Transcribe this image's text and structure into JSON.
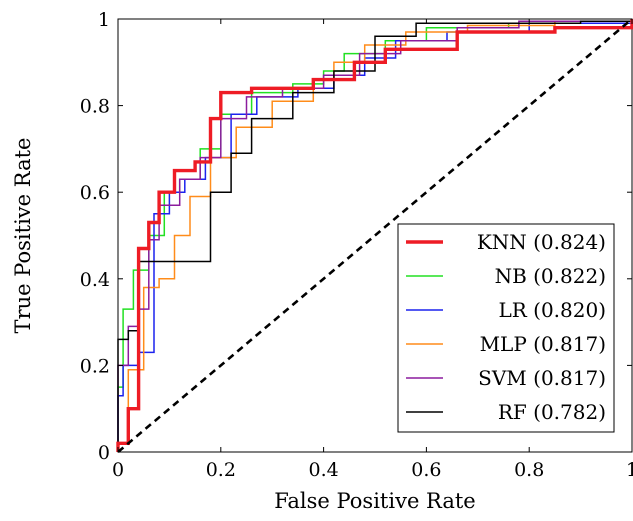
{
  "chart_data": {
    "type": "line",
    "title": "",
    "xlabel": "False Positive Rate",
    "ylabel": "True Positive Rate",
    "xlim": [
      0,
      1
    ],
    "ylim": [
      0,
      1
    ],
    "xticks": [
      0,
      0.2,
      0.4,
      0.6,
      0.8,
      1
    ],
    "yticks": [
      0,
      0.2,
      0.4,
      0.6,
      0.8,
      1
    ],
    "xtick_labels": [
      "0",
      "0.2",
      "0.4",
      "0.6",
      "0.8",
      "1"
    ],
    "ytick_labels": [
      "0",
      "0.2",
      "0.4",
      "0.6",
      "0.8",
      "1"
    ],
    "grid": false,
    "legend_position": "bottom-right",
    "reference_line": {
      "x": [
        0,
        1
      ],
      "y": [
        0,
        1
      ],
      "style": "dashed",
      "color": "#000000"
    },
    "series": [
      {
        "name": "KNN (0.824)",
        "color": "#ee1c25",
        "width": 3.4,
        "x": [
          0,
          0,
          0.02,
          0.02,
          0.04,
          0.04,
          0.06,
          0.06,
          0.08,
          0.08,
          0.11,
          0.11,
          0.15,
          0.15,
          0.18,
          0.18,
          0.2,
          0.2,
          0.26,
          0.26,
          0.38,
          0.38,
          0.46,
          0.46,
          0.52,
          0.52,
          0.66,
          0.66,
          0.85,
          0.85,
          1,
          1
        ],
        "y": [
          0,
          0.02,
          0.02,
          0.1,
          0.1,
          0.47,
          0.47,
          0.53,
          0.53,
          0.6,
          0.6,
          0.65,
          0.65,
          0.67,
          0.67,
          0.77,
          0.77,
          0.83,
          0.83,
          0.84,
          0.84,
          0.86,
          0.86,
          0.9,
          0.9,
          0.93,
          0.93,
          0.97,
          0.97,
          0.98,
          0.98,
          1
        ]
      },
      {
        "name": "NB (0.822)",
        "color": "#22e022",
        "width": 1.5,
        "x": [
          0,
          0,
          0.01,
          0.01,
          0.03,
          0.03,
          0.06,
          0.06,
          0.09,
          0.09,
          0.12,
          0.12,
          0.16,
          0.16,
          0.2,
          0.2,
          0.26,
          0.26,
          0.34,
          0.34,
          0.4,
          0.4,
          0.44,
          0.44,
          0.52,
          0.52,
          0.6,
          0.6,
          0.76,
          0.76,
          1,
          1
        ],
        "y": [
          0,
          0.15,
          0.15,
          0.33,
          0.33,
          0.42,
          0.42,
          0.5,
          0.5,
          0.6,
          0.6,
          0.63,
          0.63,
          0.7,
          0.7,
          0.78,
          0.78,
          0.83,
          0.83,
          0.85,
          0.85,
          0.88,
          0.88,
          0.92,
          0.92,
          0.95,
          0.95,
          0.98,
          0.98,
          0.99,
          0.99,
          1
        ]
      },
      {
        "name": "LR (0.820)",
        "color": "#1c22ee",
        "width": 1.5,
        "x": [
          0,
          0,
          0.01,
          0.01,
          0.04,
          0.04,
          0.07,
          0.07,
          0.1,
          0.1,
          0.13,
          0.13,
          0.17,
          0.17,
          0.22,
          0.22,
          0.27,
          0.27,
          0.35,
          0.35,
          0.42,
          0.42,
          0.48,
          0.48,
          0.54,
          0.54,
          0.64,
          0.64,
          0.8,
          0.8,
          1,
          1
        ],
        "y": [
          0,
          0.13,
          0.13,
          0.2,
          0.2,
          0.23,
          0.23,
          0.55,
          0.55,
          0.6,
          0.6,
          0.63,
          0.63,
          0.68,
          0.68,
          0.78,
          0.78,
          0.82,
          0.82,
          0.84,
          0.84,
          0.87,
          0.87,
          0.91,
          0.91,
          0.95,
          0.95,
          0.97,
          0.97,
          0.99,
          0.99,
          1
        ]
      },
      {
        "name": "MLP (0.817)",
        "color": "#ff8c1a",
        "width": 1.5,
        "x": [
          0,
          0,
          0.02,
          0.02,
          0.05,
          0.05,
          0.08,
          0.08,
          0.11,
          0.11,
          0.14,
          0.14,
          0.18,
          0.18,
          0.23,
          0.23,
          0.3,
          0.3,
          0.38,
          0.38,
          0.42,
          0.42,
          0.48,
          0.48,
          0.56,
          0.56,
          0.68,
          0.68,
          0.85,
          0.85,
          1,
          1
        ],
        "y": [
          0,
          0.02,
          0.02,
          0.19,
          0.19,
          0.38,
          0.38,
          0.4,
          0.4,
          0.5,
          0.5,
          0.59,
          0.59,
          0.68,
          0.68,
          0.75,
          0.75,
          0.81,
          0.81,
          0.86,
          0.86,
          0.9,
          0.9,
          0.94,
          0.94,
          0.97,
          0.97,
          0.985,
          0.985,
          0.995,
          0.995,
          1
        ]
      },
      {
        "name": "SVM (0.817)",
        "color": "#8b1c9e",
        "width": 1.5,
        "x": [
          0,
          0,
          0.02,
          0.02,
          0.04,
          0.04,
          0.06,
          0.06,
          0.08,
          0.08,
          0.12,
          0.12,
          0.16,
          0.16,
          0.2,
          0.2,
          0.25,
          0.25,
          0.32,
          0.32,
          0.4,
          0.4,
          0.47,
          0.47,
          0.55,
          0.55,
          0.66,
          0.66,
          0.78,
          0.78,
          1,
          1
        ],
        "y": [
          0,
          0.2,
          0.2,
          0.29,
          0.29,
          0.33,
          0.33,
          0.49,
          0.49,
          0.57,
          0.57,
          0.63,
          0.63,
          0.68,
          0.68,
          0.77,
          0.77,
          0.82,
          0.82,
          0.84,
          0.84,
          0.87,
          0.87,
          0.92,
          0.92,
          0.95,
          0.95,
          0.98,
          0.98,
          0.995,
          0.995,
          1
        ]
      },
      {
        "name": "RF (0.782)",
        "color": "#000000",
        "width": 1.5,
        "x": [
          0,
          0,
          0.02,
          0.02,
          0.04,
          0.04,
          0.18,
          0.18,
          0.22,
          0.22,
          0.26,
          0.26,
          0.34,
          0.34,
          0.42,
          0.42,
          0.5,
          0.5,
          0.58,
          0.58,
          0.9,
          0.9,
          1,
          1
        ],
        "y": [
          0,
          0.26,
          0.26,
          0.28,
          0.28,
          0.44,
          0.44,
          0.6,
          0.6,
          0.69,
          0.69,
          0.77,
          0.77,
          0.83,
          0.83,
          0.88,
          0.88,
          0.96,
          0.96,
          0.99,
          0.99,
          0.995,
          0.995,
          1
        ]
      }
    ]
  }
}
